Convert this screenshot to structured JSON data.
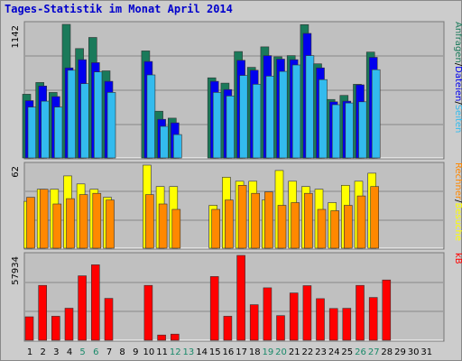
{
  "title": "Tages-Statistik im Monat April 2014",
  "colors": {
    "anfragen": "#1a7a5a",
    "dateien": "#0000ee",
    "seiten": "#33bbee",
    "besuche": "#ffff00",
    "rechner": "#ff8800",
    "kb": "#ff0000",
    "weekend_label": "#1a8a6a",
    "weekday_label": "#000000",
    "panel_bg": "#c0c0c0",
    "background": "#cccccc"
  },
  "chart_data": {
    "type": "bar",
    "x": [
      1,
      2,
      3,
      4,
      5,
      6,
      7,
      8,
      9,
      10,
      11,
      12,
      13,
      14,
      15,
      16,
      17,
      18,
      19,
      20,
      21,
      22,
      23,
      24,
      25,
      26,
      27,
      28,
      29,
      30,
      31
    ],
    "weekend_days": [
      5,
      6,
      12,
      13,
      19,
      20,
      26,
      27
    ],
    "panels": [
      {
        "id": "hits",
        "ymax_label": "1142",
        "ymax": 1142,
        "legend": [
          "Anfragen",
          "/",
          "Dateien",
          "/",
          "Seiten"
        ],
        "legend_colors": [
          "#1a7a5a",
          "#000000",
          "#0000ee",
          "#000000",
          "#33bbee"
        ],
        "series": [
          {
            "name": "Anfragen",
            "color": "#1a7a5a",
            "values": [
              545,
              645,
              560,
              1142,
              935,
              1030,
              745,
              0,
              0,
              915,
              400,
              340,
              0,
              0,
              685,
              640,
              910,
              775,
              950,
              865,
              875,
              1140,
              805,
              500,
              535,
              630,
              905,
              0,
              0,
              0,
              0
            ]
          },
          {
            "name": "Dateien",
            "color": "#0000ee",
            "values": [
              490,
              615,
              525,
              770,
              840,
              815,
              655,
              0,
              0,
              825,
              330,
              300,
              0,
              0,
              655,
              585,
              835,
              750,
              875,
              845,
              840,
              1065,
              770,
              480,
              485,
              625,
              860,
              0,
              0,
              0,
              0
            ]
          },
          {
            "name": "Seiten",
            "color": "#33bbee",
            "values": [
              435,
              485,
              435,
              750,
              635,
              735,
              560,
              0,
              0,
              710,
              270,
              200,
              0,
              0,
              560,
              530,
              705,
              630,
              700,
              740,
              795,
              875,
              670,
              455,
              470,
              480,
              755,
              0,
              0,
              0,
              0
            ]
          }
        ]
      },
      {
        "id": "visits",
        "ymax_label": "62",
        "ymax": 62,
        "legend": [
          "Rechner",
          "/",
          "Besuche"
        ],
        "legend_colors": [
          "#ff8800",
          "#000000",
          "#ffff00"
        ],
        "series": [
          {
            "name": "Besuche",
            "color": "#ffff00",
            "values": [
              35,
              44,
              44,
              54,
              48,
              44,
              38,
              0,
              0,
              62,
              46,
              46,
              0,
              0,
              32,
              53,
              50,
              50,
              36,
              58,
              50,
              46,
              44,
              34,
              47,
              50,
              56,
              0,
              0,
              0,
              0
            ]
          },
          {
            "name": "Rechner",
            "color": "#ff8800",
            "values": [
              38,
              44,
              33,
              37,
              40,
              41,
              36,
              0,
              0,
              40,
              33,
              29,
              0,
              0,
              29,
              36,
              47,
              41,
              42,
              32,
              34,
              41,
              29,
              28,
              32,
              39,
              46,
              0,
              0,
              0,
              0
            ]
          }
        ]
      },
      {
        "id": "kb",
        "ymax_label": "57934",
        "ymax": 57934,
        "legend": [
          "kB"
        ],
        "legend_colors": [
          "#ff0000"
        ],
        "series": [
          {
            "name": "kB",
            "color": "#ff0000",
            "values": [
              16000,
              37500,
              16400,
              21900,
              44000,
              51500,
              28600,
              0,
              0,
              37500,
              3600,
              4200,
              0,
              0,
              43500,
              16400,
              57934,
              24300,
              35800,
              16800,
              32300,
              37300,
              28400,
              21700,
              21800,
              37500,
              29200,
              41200,
              0,
              0,
              0
            ]
          }
        ]
      }
    ]
  }
}
